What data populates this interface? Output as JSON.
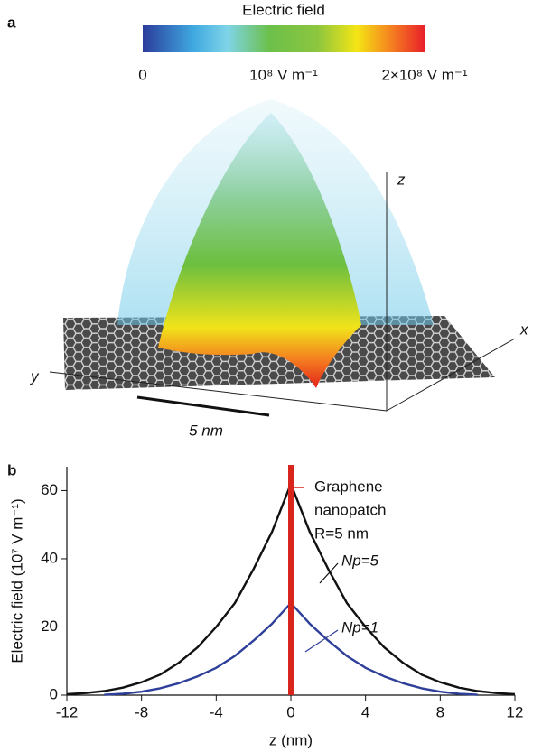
{
  "panel_a": {
    "label": "a",
    "colorbar": {
      "title": "Electric field",
      "lim": [
        0,
        200000000
      ],
      "ticks": [
        {
          "value": 0,
          "label": "0"
        },
        {
          "value": 100000000,
          "label": "10⁸ V m⁻¹"
        },
        {
          "value": 200000000,
          "label": "2×10⁸ V m⁻¹"
        }
      ]
    },
    "axis_labels": {
      "z": "z",
      "x": "x",
      "y": "y"
    },
    "scale_bar": "5 nm"
  },
  "chart_data": {
    "type": "line",
    "label": "b",
    "xlabel": "z (nm)",
    "ylabel": "Electric field (10⁷ V m⁻¹)",
    "x": [
      -12,
      -11,
      -10,
      -9,
      -8,
      -7,
      -6,
      -5,
      -4,
      -3,
      -2,
      -1,
      0,
      1,
      2,
      3,
      4,
      5,
      6,
      7,
      8,
      9,
      10,
      11,
      12
    ],
    "series": [
      {
        "name": "Np=5",
        "color": "#111111",
        "values": [
          0.3,
          0.6,
          1.2,
          2.2,
          3.8,
          6,
          9.5,
          14,
          20,
          27,
          37,
          48,
          62,
          48,
          37,
          27,
          20,
          14,
          9.5,
          6,
          3.8,
          2.2,
          1.2,
          0.6,
          0.3
        ]
      },
      {
        "name": "Np=1",
        "color": "#2e3f9a",
        "values": [
          null,
          null,
          0.1,
          0.4,
          1,
          2,
          3.5,
          5.5,
          8,
          11.5,
          16,
          21,
          27,
          21,
          16,
          11.5,
          8,
          5.5,
          3.5,
          2,
          1,
          0.4,
          0.1,
          null,
          null
        ]
      }
    ],
    "xlim": [
      -12,
      12
    ],
    "xticks": [
      -12,
      -8,
      -4,
      0,
      4,
      8,
      12
    ],
    "ylim": [
      0,
      67
    ],
    "yticks": [
      0,
      20,
      40,
      60
    ],
    "annotation": [
      "Graphene",
      "nanopatch",
      "R=5 nm"
    ]
  }
}
